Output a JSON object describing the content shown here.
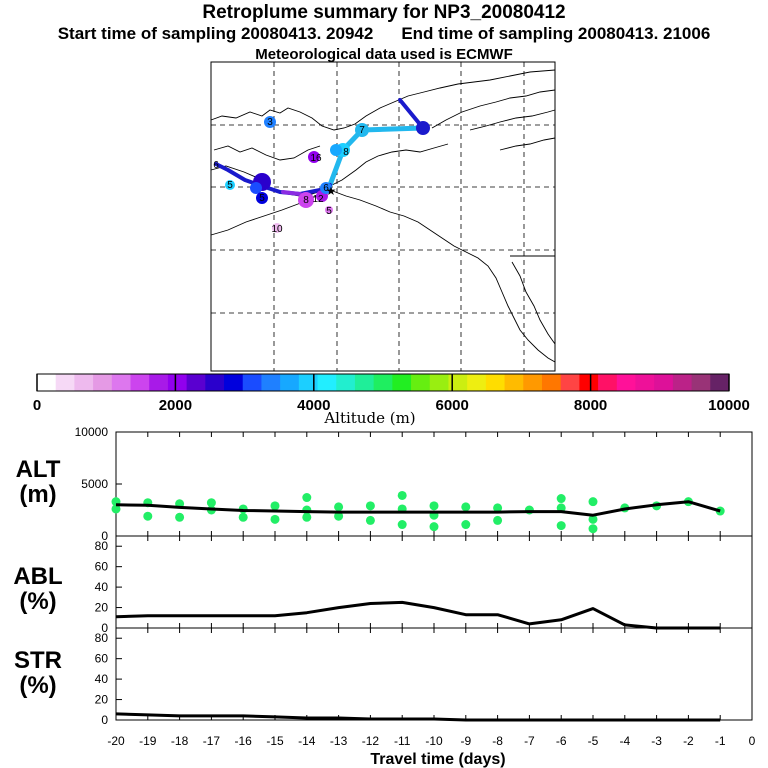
{
  "header": {
    "title": "Retroplume summary for NP3_20080412",
    "start_label": "Start time of sampling 20080413. 20942",
    "end_label": "End time of sampling 20080413. 21006",
    "met_label": "Meteorological data used is ECMWF"
  },
  "colors": {
    "line": "#000000",
    "alt_points": "#22ee66",
    "map_line_blue": "#1a1acc",
    "map_line_cyan": "#22b8ee"
  },
  "colorbar": {
    "title": "Altitude (m)",
    "ticks": [
      "0",
      "2000",
      "4000",
      "6000",
      "8000",
      "10000"
    ],
    "range": [
      0,
      10000
    ],
    "colors": [
      "#ffffff",
      "#f6d9f6",
      "#eebaee",
      "#e59ae5",
      "#dd77ee",
      "#cc44ee",
      "#a81ae8",
      "#9200ee",
      "#5a00d0",
      "#2a00cc",
      "#0000dd",
      "#1a4cff",
      "#1f80ff",
      "#17a8ff",
      "#1ccfff",
      "#22eeff",
      "#22eecf",
      "#1fee99",
      "#1fee60",
      "#22ee22",
      "#66ee11",
      "#99ee11",
      "#ccee11",
      "#eeee11",
      "#ffdd00",
      "#ffbb00",
      "#ff9900",
      "#ff7700",
      "#ff4444",
      "#ff0000",
      "#ff1166",
      "#ff1199",
      "#ee1199",
      "#dd1199",
      "#bb2288",
      "#993377",
      "#662266"
    ]
  },
  "map_labels": [
    "3",
    "7",
    "8",
    "16",
    "6",
    "5",
    "5",
    "8",
    "12",
    "6",
    "5",
    "10"
  ],
  "chart_data": [
    {
      "type": "line",
      "panel": "ALT",
      "ylabel": "ALT (m)",
      "ylim": [
        0,
        10000
      ],
      "yticks": [
        "0",
        "5000",
        "10000"
      ],
      "x": [
        -20,
        -19,
        -18,
        -17,
        -16,
        -15,
        -14,
        -13,
        -12,
        -11,
        -10,
        -9,
        -8,
        -7,
        -6,
        -5,
        -4,
        -3,
        -2,
        -1
      ],
      "values": [
        3000,
        2950,
        2750,
        2600,
        2450,
        2400,
        2350,
        2300,
        2300,
        2300,
        2300,
        2300,
        2300,
        2350,
        2350,
        2000,
        2600,
        3000,
        3300,
        2400
      ],
      "points": [
        [
          -20,
          3300
        ],
        [
          -20,
          2600
        ],
        [
          -19,
          3200
        ],
        [
          -19,
          1900
        ],
        [
          -18,
          3100
        ],
        [
          -18,
          1800
        ],
        [
          -17,
          3200
        ],
        [
          -17,
          2500
        ],
        [
          -16,
          2600
        ],
        [
          -16,
          1800
        ],
        [
          -15,
          2900
        ],
        [
          -15,
          1600
        ],
        [
          -14,
          3700
        ],
        [
          -14,
          2500
        ],
        [
          -14,
          1800
        ],
        [
          -13,
          2800
        ],
        [
          -13,
          1900
        ],
        [
          -12,
          2900
        ],
        [
          -12,
          1500
        ],
        [
          -11,
          3900
        ],
        [
          -11,
          2600
        ],
        [
          -11,
          1100
        ],
        [
          -10,
          2900
        ],
        [
          -10,
          2000
        ],
        [
          -10,
          900
        ],
        [
          -9,
          2800
        ],
        [
          -9,
          1100
        ],
        [
          -8,
          2700
        ],
        [
          -8,
          1500
        ],
        [
          -7,
          2500
        ],
        [
          -6,
          3600
        ],
        [
          -6,
          2700
        ],
        [
          -6,
          1000
        ],
        [
          -5,
          3300
        ],
        [
          -5,
          1600
        ],
        [
          -5,
          700
        ],
        [
          -4,
          2700
        ],
        [
          -3,
          2900
        ],
        [
          -2,
          3300
        ],
        [
          -1,
          2400
        ]
      ]
    },
    {
      "type": "line",
      "panel": "ABL",
      "ylabel": "ABL (%)",
      "ylim": [
        0,
        90
      ],
      "yticks": [
        "0",
        "20",
        "40",
        "60",
        "80"
      ],
      "x": [
        -20,
        -19,
        -18,
        -17,
        -16,
        -15,
        -14,
        -13,
        -12,
        -11,
        -10,
        -9,
        -8,
        -7,
        -6,
        -5,
        -4,
        -3,
        -2,
        -1
      ],
      "values": [
        11,
        12,
        12,
        12,
        12,
        12,
        15,
        20,
        24,
        25,
        20,
        13,
        13,
        4,
        8,
        19,
        3,
        0,
        0,
        0
      ]
    },
    {
      "type": "line",
      "panel": "STR",
      "ylabel": "STR (%)",
      "ylim": [
        0,
        90
      ],
      "yticks": [
        "0",
        "20",
        "40",
        "60",
        "80"
      ],
      "x": [
        -20,
        -19,
        -18,
        -17,
        -16,
        -15,
        -14,
        -13,
        -12,
        -11,
        -10,
        -9,
        -8,
        -7,
        -6,
        -5,
        -4,
        -3,
        -2,
        -1
      ],
      "values": [
        6,
        5,
        4,
        4,
        4,
        3,
        2,
        2,
        1,
        1,
        1,
        0,
        0,
        0,
        0,
        0,
        0,
        0,
        0,
        0
      ]
    },
    {
      "type": "axis",
      "xlabel": "Travel time (days)",
      "xlim": [
        -20,
        0
      ],
      "xticks": [
        "-20",
        "-19",
        "-18",
        "-17",
        "-16",
        "-15",
        "-14",
        "-13",
        "-12",
        "-11",
        "-10",
        "-9",
        "-8",
        "-7",
        "-6",
        "-5",
        "-4",
        "-3",
        "-2",
        "-1",
        "0"
      ]
    }
  ]
}
